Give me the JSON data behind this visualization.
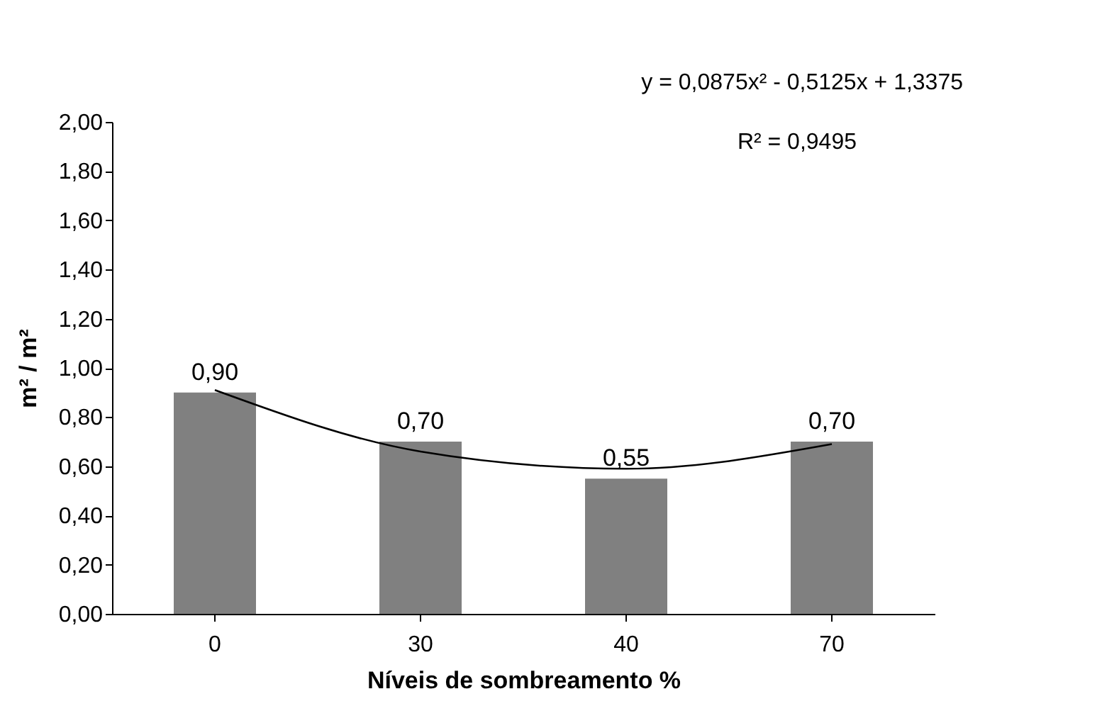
{
  "chart_data": {
    "type": "bar",
    "xlabel": "Níveis de sombreamento %",
    "ylabel": "m² / m²",
    "categories": [
      "0",
      "30",
      "40",
      "70"
    ],
    "series": [
      {
        "color": "#808080",
        "values": [
          0.9,
          0.7,
          0.55,
          0.7
        ],
        "value_labels": [
          "0,90",
          "0,70",
          "0,55",
          "0,70"
        ]
      },
      {
        "type": "line",
        "color": "#000000",
        "x": [
          "0",
          "30",
          "40",
          "70"
        ],
        "values": [
          0.91,
          0.66,
          0.59,
          0.69
        ]
      }
    ],
    "ylim": [
      0,
      2
    ],
    "yticks": [
      {
        "value": 0,
        "label": "0,00"
      },
      {
        "value": 0.2,
        "label": "0,20"
      },
      {
        "value": 0.4,
        "label": "0,40"
      },
      {
        "value": 0.6,
        "label": "0,60"
      },
      {
        "value": 0.8,
        "label": "0,80"
      },
      {
        "value": 1.0,
        "label": "1,00"
      },
      {
        "value": 1.2,
        "label": "1,20"
      },
      {
        "value": 1.4,
        "label": "1,40"
      },
      {
        "value": 1.6,
        "label": "1,60"
      },
      {
        "value": 1.8,
        "label": "1,80"
      },
      {
        "value": 2.0,
        "label": "2,00"
      }
    ],
    "annotations": [
      "y = 0,0875x² - 0,5125x + 1,3375",
      "R² = 0,9495"
    ],
    "grid": false,
    "legend": false,
    "marker": "none",
    "line_style": "solid"
  }
}
